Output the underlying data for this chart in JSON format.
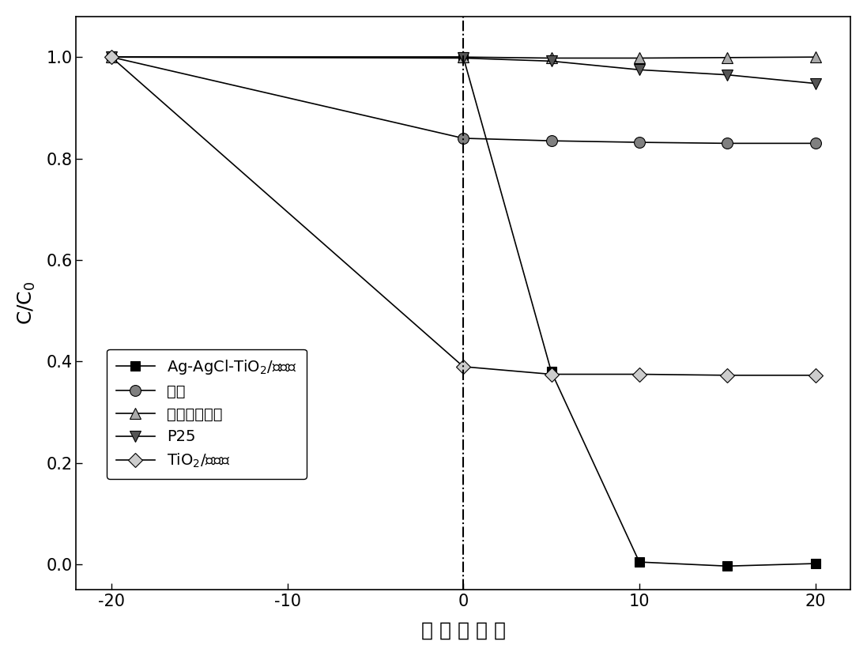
{
  "xlabel": "时 间 （ 分 ）",
  "ylabel": "C/C$_0$",
  "xlim": [
    -22,
    22
  ],
  "ylim": [
    -0.05,
    1.08
  ],
  "xticks": [
    -20,
    -10,
    0,
    10,
    20
  ],
  "yticks": [
    0.0,
    0.2,
    0.4,
    0.6,
    0.8,
    1.0
  ],
  "vline_x": 0,
  "series": [
    {
      "label": "Ag-AgCl-TiO$_2$/累托石",
      "x": [
        -20,
        0,
        5,
        10,
        15,
        20
      ],
      "y": [
        1.0,
        1.0,
        0.38,
        0.005,
        -0.003,
        0.002
      ],
      "marker": "s",
      "color": "#000000",
      "markersize": 9,
      "linewidth": 1.2,
      "markerfacecolor": "#000000",
      "markeredgecolor": "#000000"
    },
    {
      "label": "吸附",
      "x": [
        -20,
        0,
        5,
        10,
        15,
        20
      ],
      "y": [
        1.0,
        0.84,
        0.835,
        0.832,
        0.83,
        0.83
      ],
      "marker": "o",
      "color": "#000000",
      "markersize": 10,
      "linewidth": 1.2,
      "markerfacecolor": "#808080",
      "markeredgecolor": "#000000"
    },
    {
      "label": "有光无偐化剂",
      "x": [
        -20,
        0,
        5,
        10,
        15,
        20
      ],
      "y": [
        1.0,
        1.0,
        0.998,
        0.998,
        0.999,
        1.0
      ],
      "marker": "^",
      "color": "#000000",
      "markersize": 10,
      "linewidth": 1.2,
      "markerfacecolor": "#aaaaaa",
      "markeredgecolor": "#000000"
    },
    {
      "label": "P25",
      "x": [
        -20,
        0,
        5,
        10,
        15,
        20
      ],
      "y": [
        1.0,
        0.998,
        0.992,
        0.975,
        0.965,
        0.948
      ],
      "marker": "v",
      "color": "#000000",
      "markersize": 10,
      "linewidth": 1.2,
      "markerfacecolor": "#555555",
      "markeredgecolor": "#000000"
    },
    {
      "label": "TiO$_2$/累托石",
      "x": [
        -20,
        0,
        5,
        10,
        15,
        20
      ],
      "y": [
        1.0,
        0.39,
        0.375,
        0.375,
        0.373,
        0.373
      ],
      "marker": "D",
      "color": "#000000",
      "markersize": 9,
      "linewidth": 1.2,
      "markerfacecolor": "#cccccc",
      "markeredgecolor": "#000000"
    }
  ],
  "legend_fontsize": 14,
  "axis_fontsize": 18,
  "tick_fontsize": 15,
  "background_color": "#ffffff"
}
